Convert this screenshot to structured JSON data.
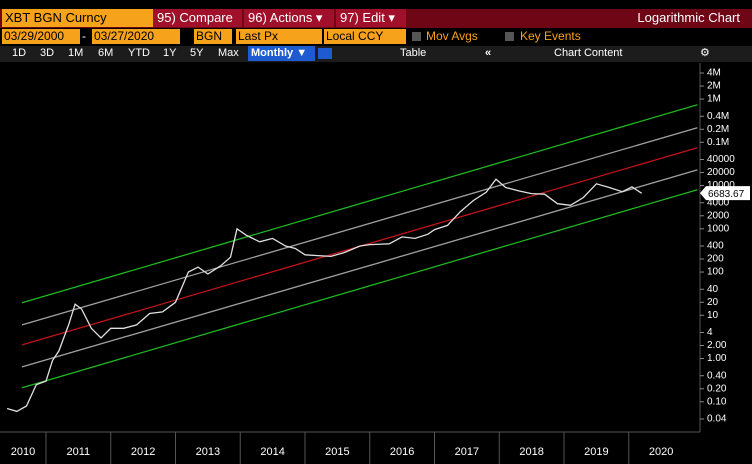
{
  "toolbar": {
    "security": "XBT BGN Curncy",
    "menus": [
      "95) Compare",
      "96) Actions ▾",
      "97) Edit ▾"
    ],
    "view_title": "Logarithmic Chart"
  },
  "controls": {
    "start_date": "03/29/2000",
    "separator": "-",
    "end_date": "03/27/2020",
    "source": "BGN",
    "field": "Last Px",
    "currency": "Local CCY",
    "toggles": [
      "Mov Avgs",
      "Key Events"
    ]
  },
  "ranges": [
    "1D",
    "3D",
    "1M",
    "6M",
    "YTD",
    "1Y",
    "5Y",
    "Max"
  ],
  "frequency": "Monthly ▼",
  "table": "Table",
  "collapse": "«",
  "chart_content": "Chart Content",
  "chart_data": {
    "type": "line",
    "log_y": true,
    "xlim": [
      2010.29,
      2021.1
    ],
    "xticks": [
      2010,
      2011,
      2012,
      2013,
      2014,
      2015,
      2016,
      2017,
      2018,
      2019,
      2020
    ],
    "ylim": [
      0.02,
      8000000
    ],
    "yticks": [
      {
        "value": 4000000,
        "label": "4M"
      },
      {
        "value": 2000000,
        "label": "2M"
      },
      {
        "value": 1000000,
        "label": "1M"
      },
      {
        "value": 400000,
        "label": "0.4M"
      },
      {
        "value": 200000,
        "label": "0.2M"
      },
      {
        "value": 100000,
        "label": "0.1M"
      },
      40000,
      20000,
      10000,
      4000,
      2000,
      1000,
      400,
      200,
      100,
      40,
      20,
      10,
      4,
      {
        "value": 2,
        "label": "2.00"
      },
      {
        "value": 1,
        "label": "1.00"
      },
      {
        "value": 0.4,
        "label": "0.40"
      },
      {
        "value": 0.2,
        "label": "0.20"
      },
      {
        "value": 0.1,
        "label": "0.10"
      },
      0.04
    ],
    "last_price": 6683.67,
    "series": [
      {
        "color": "#1fb81f",
        "x": [
          2010.63,
          2021.06
        ],
        "values": [
          19.4,
          740000
        ]
      },
      {
        "color": "#a0a0a0",
        "x": [
          2010.63,
          2021.06
        ],
        "values": [
          6,
          218000
        ]
      },
      {
        "color": "#c0141a",
        "x": [
          2010.63,
          2021.06
        ],
        "values": [
          2.07,
          75000
        ]
      },
      {
        "color": "#a0a0a0",
        "x": [
          2010.63,
          2021.06
        ],
        "values": [
          0.64,
          23000
        ]
      },
      {
        "color": "#1fb81f",
        "x": [
          2010.63,
          2021.06
        ],
        "values": [
          0.21,
          8000
        ]
      },
      {
        "color": "#e0e0e0",
        "x": [
          2010.4,
          2010.55,
          2010.7,
          2010.85,
          2011.0,
          2011.1,
          2011.2,
          2011.35,
          2011.45,
          2011.55,
          2011.7,
          2011.85,
          2012.0,
          2012.2,
          2012.4,
          2012.6,
          2012.8,
          2013.0,
          2013.2,
          2013.35,
          2013.5,
          2013.7,
          2013.85,
          2013.95,
          2014.1,
          2014.3,
          2014.5,
          2014.7,
          2014.85,
          2015.0,
          2015.2,
          2015.4,
          2015.6,
          2015.85,
          2016.0,
          2016.3,
          2016.5,
          2016.7,
          2016.9,
          2017.0,
          2017.2,
          2017.4,
          2017.6,
          2017.8,
          2017.95,
          2018.1,
          2018.3,
          2018.5,
          2018.7,
          2018.9,
          2019.1,
          2019.3,
          2019.5,
          2019.7,
          2019.9,
          2020.05,
          2020.2
        ],
        "values": [
          0.07,
          0.06,
          0.08,
          0.25,
          0.3,
          0.9,
          1.5,
          6,
          18,
          14,
          5,
          3,
          5,
          5,
          6,
          11,
          12,
          20,
          100,
          130,
          90,
          140,
          220,
          1000,
          700,
          500,
          600,
          400,
          350,
          250,
          240,
          230,
          280,
          400,
          430,
          450,
          650,
          600,
          750,
          960,
          1200,
          2500,
          4500,
          7000,
          14000,
          9000,
          7500,
          6500,
          6300,
          3800,
          3500,
          5300,
          11000,
          9000,
          7200,
          9300,
          6600
        ]
      }
    ]
  }
}
